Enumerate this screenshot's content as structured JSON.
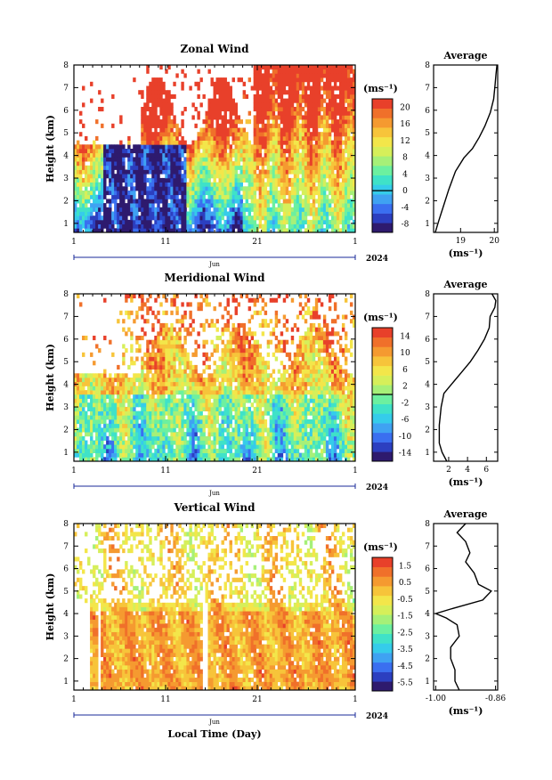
{
  "chart_data": [
    {
      "type": "heatmap",
      "title": "Zonal Wind",
      "ylabel": "Height (km)",
      "ylim": [
        0.6,
        8
      ],
      "yticks": [
        1,
        2,
        3,
        4,
        5,
        6,
        7,
        8
      ],
      "xticks": [
        "1",
        "11",
        "21",
        "1"
      ],
      "month_label": "Jun",
      "year_label": "2024",
      "xlabel": "",
      "colorbar": {
        "unit": "(ms⁻¹)",
        "ticks": [
          "20",
          "16",
          "12",
          "8",
          "4",
          "0",
          "-4",
          "-8"
        ],
        "zero_tick": "0",
        "range": [
          -10,
          22
        ]
      },
      "profile": {
        "title": "Average",
        "xticks": [
          "19",
          "20"
        ],
        "xlabel": "(ms⁻¹)",
        "xlim": [
          18.2,
          20.1
        ],
        "points": [
          [
            18.25,
            0.6
          ],
          [
            18.35,
            1.1
          ],
          [
            18.5,
            1.8
          ],
          [
            18.65,
            2.5
          ],
          [
            18.85,
            3.3
          ],
          [
            19.1,
            3.9
          ],
          [
            19.35,
            4.3
          ],
          [
            19.55,
            4.8
          ],
          [
            19.72,
            5.3
          ],
          [
            19.88,
            5.9
          ],
          [
            19.98,
            6.5
          ],
          [
            20.02,
            7.1
          ],
          [
            20.05,
            7.6
          ],
          [
            20.08,
            8.0
          ]
        ]
      }
    },
    {
      "type": "heatmap",
      "title": "Meridional Wind",
      "ylabel": "Height (km)",
      "ylim": [
        0.6,
        8
      ],
      "yticks": [
        1,
        2,
        3,
        4,
        5,
        6,
        7,
        8
      ],
      "xticks": [
        "1",
        "11",
        "21",
        "1"
      ],
      "month_label": "Jun",
      "year_label": "2024",
      "xlabel": "",
      "colorbar": {
        "unit": "(ms⁻¹)",
        "ticks": [
          "14",
          "10",
          "6",
          "2",
          "-2",
          "-6",
          "-10",
          "-14"
        ],
        "zero_tick": "0",
        "range": [
          -16,
          16
        ]
      },
      "profile": {
        "title": "Average",
        "xticks": [
          "2",
          "4",
          "6"
        ],
        "xlabel": "(ms⁻¹)",
        "xlim": [
          0.4,
          7.2
        ],
        "points": [
          [
            1.8,
            0.6
          ],
          [
            1.3,
            1.0
          ],
          [
            1.0,
            1.4
          ],
          [
            1.0,
            2.2
          ],
          [
            1.2,
            3.0
          ],
          [
            1.5,
            3.6
          ],
          [
            2.3,
            4.0
          ],
          [
            3.3,
            4.5
          ],
          [
            4.3,
            5.0
          ],
          [
            5.1,
            5.5
          ],
          [
            5.8,
            6.0
          ],
          [
            6.3,
            6.5
          ],
          [
            6.4,
            7.0
          ],
          [
            6.9,
            7.4
          ],
          [
            7.0,
            7.7
          ],
          [
            6.6,
            8.0
          ]
        ]
      }
    },
    {
      "type": "heatmap",
      "title": "Vertical Wind",
      "ylabel": "Height (km)",
      "ylim": [
        0.6,
        8
      ],
      "yticks": [
        1,
        2,
        3,
        4,
        5,
        6,
        7,
        8
      ],
      "xticks": [
        "1",
        "11",
        "21",
        "1"
      ],
      "month_label": "Jun",
      "year_label": "2024",
      "xlabel": "Local Time (Day)",
      "colorbar": {
        "unit": "(ms⁻¹)",
        "ticks": [
          "1.5",
          "0.5",
          "-0.5",
          "-1.5",
          "-2.5",
          "-3.5",
          "-4.5",
          "-5.5"
        ],
        "range": [
          -6.0,
          2.0
        ]
      },
      "profile": {
        "title": "Average",
        "xticks": [
          "-1.00",
          "-0.86"
        ],
        "xlabel": "(ms⁻¹)",
        "xlim": [
          -1.005,
          -0.855
        ],
        "points": [
          [
            -0.945,
            0.6
          ],
          [
            -0.955,
            1.0
          ],
          [
            -0.955,
            1.5
          ],
          [
            -0.965,
            2.0
          ],
          [
            -0.965,
            2.5
          ],
          [
            -0.945,
            3.0
          ],
          [
            -0.95,
            3.5
          ],
          [
            -0.975,
            3.8
          ],
          [
            -1.0,
            4.0
          ],
          [
            -0.965,
            4.2
          ],
          [
            -0.89,
            4.6
          ],
          [
            -0.87,
            5.0
          ],
          [
            -0.9,
            5.3
          ],
          [
            -0.91,
            5.8
          ],
          [
            -0.93,
            6.3
          ],
          [
            -0.92,
            6.7
          ],
          [
            -0.93,
            7.2
          ],
          [
            -0.95,
            7.6
          ],
          [
            -0.93,
            8.0
          ]
        ]
      }
    }
  ]
}
